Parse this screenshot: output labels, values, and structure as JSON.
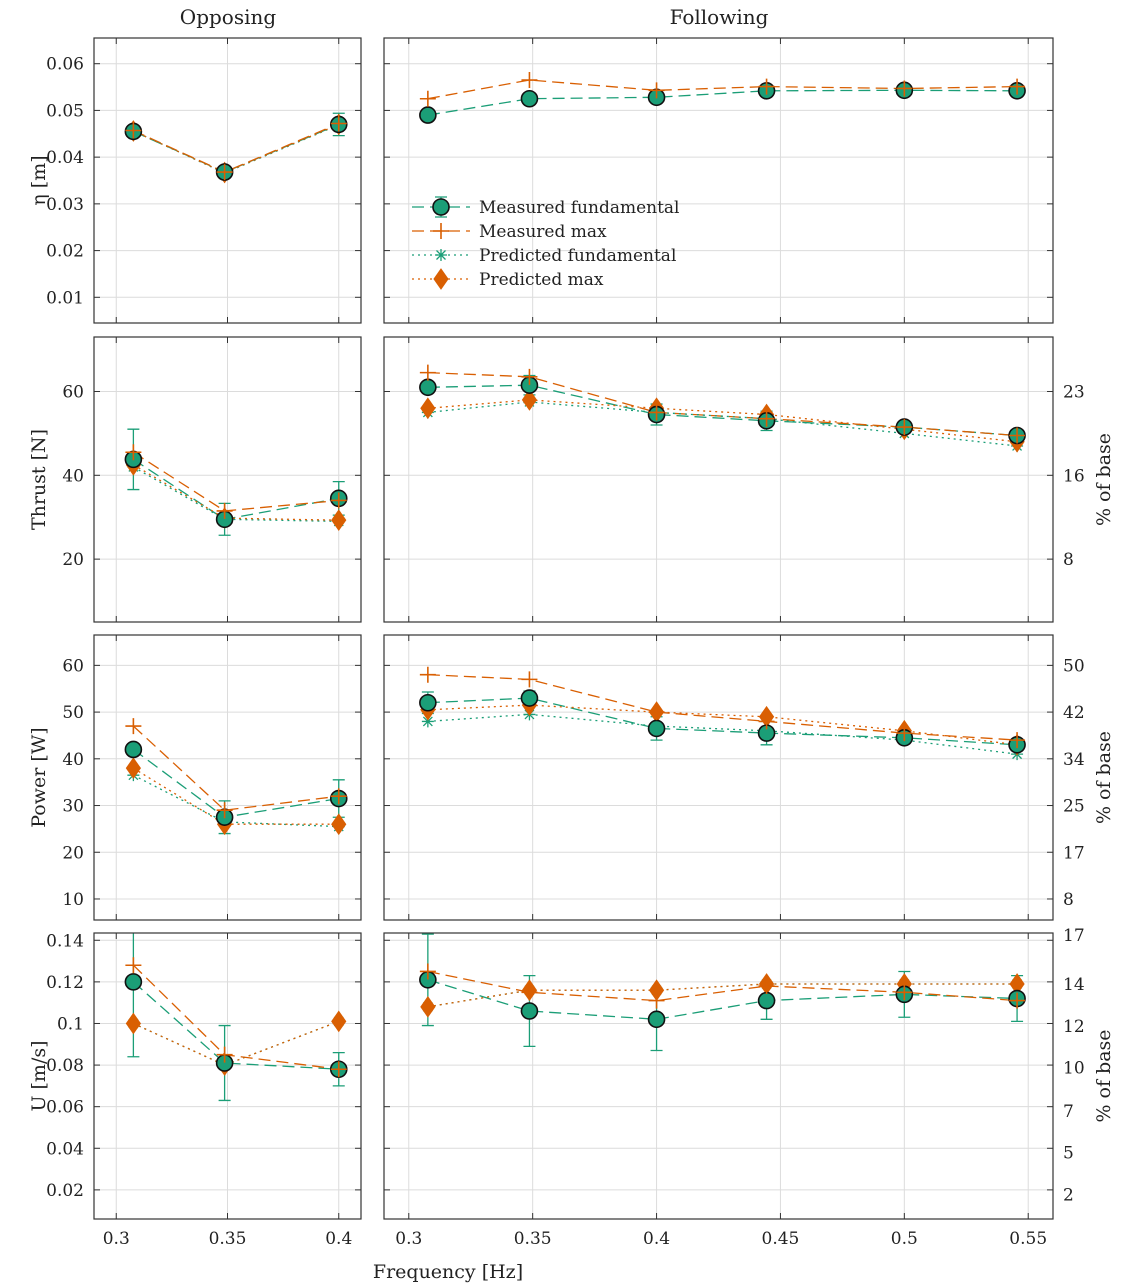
{
  "figure": {
    "column_titles": [
      "Opposing",
      "Following"
    ],
    "xlabel": "Frequency [Hz]"
  },
  "legend": {
    "placement": "inside first Following panel, middle-left",
    "entries": [
      {
        "series": "meas_fund",
        "label": "Measured fundamental"
      },
      {
        "series": "meas_max",
        "label": "Measured max"
      },
      {
        "series": "pred_fund",
        "label": "Predicted fundamental"
      },
      {
        "series": "pred_max",
        "label": "Predicted max"
      }
    ]
  },
  "series_styles": {
    "meas_fund": {
      "color": "#1b9e77",
      "line": "dashed",
      "marker": "circle"
    },
    "meas_max": {
      "color": "#d95f02",
      "line": "dashed",
      "marker": "plus"
    },
    "pred_fund": {
      "color": "#1b9e77",
      "line": "dotted",
      "marker": "asterisk"
    },
    "pred_max": {
      "color": "#d95f02",
      "line": "dotted",
      "marker": "diamond"
    }
  },
  "chart_data": [
    {
      "type": "line",
      "row": "eta",
      "column": "Opposing",
      "title": "Opposing",
      "ylabel": "η [m]",
      "xlabel": "",
      "xlim": [
        0.29,
        0.41
      ],
      "ylim": [
        0.0045,
        0.0655
      ],
      "xticks": [
        0.3,
        0.35,
        0.4
      ],
      "xticklabels": [
        "",
        "",
        ""
      ],
      "yticks": [
        0.01,
        0.02,
        0.03,
        0.04,
        0.05,
        0.06
      ],
      "yticklabels": [
        "0.01",
        "0.02",
        "0.03",
        "0.04",
        "0.05",
        "0.06"
      ],
      "grid": true,
      "x": [
        0.3077,
        0.3487,
        0.4
      ],
      "series": [
        {
          "key": "meas_fund",
          "values": [
            0.0455,
            0.0368,
            0.047
          ],
          "err": [
            0.0006,
            0.0006,
            0.0024
          ]
        },
        {
          "key": "meas_max",
          "values": [
            0.0457,
            0.0368,
            0.0472
          ]
        },
        {
          "key": "pred_fund",
          "values": [
            0.0456,
            0.0366,
            0.0469
          ]
        },
        {
          "key": "pred_max",
          "values": [
            0.0456,
            0.0367,
            0.047
          ]
        }
      ]
    },
    {
      "type": "line",
      "row": "eta",
      "column": "Following",
      "title": "Following",
      "ylabel": "",
      "xlabel": "",
      "xlim": [
        0.29,
        0.56
      ],
      "ylim": [
        0.0045,
        0.0655
      ],
      "xticks": [
        0.3,
        0.35,
        0.4,
        0.45,
        0.5,
        0.55
      ],
      "xticklabels": [
        "",
        "",
        "",
        "",
        "",
        ""
      ],
      "yticks": [
        0.01,
        0.02,
        0.03,
        0.04,
        0.05,
        0.06
      ],
      "yticklabels": [
        "",
        "",
        "",
        "",
        "",
        ""
      ],
      "grid": true,
      "x": [
        0.3077,
        0.3487,
        0.4,
        0.4444,
        0.5,
        0.5455
      ],
      "series": [
        {
          "key": "meas_fund",
          "values": [
            0.049,
            0.0525,
            0.0528,
            0.0542,
            0.0543,
            0.0542
          ],
          "err": [
            0.0005,
            0.0005,
            0.0005,
            0.0005,
            0.0005,
            0.0005
          ]
        },
        {
          "key": "meas_max",
          "values": [
            0.0525,
            0.0565,
            0.0543,
            0.0551,
            0.0547,
            0.0551
          ]
        }
      ]
    },
    {
      "type": "line",
      "row": "thrust",
      "column": "Opposing",
      "title": "",
      "ylabel": "Thrust [N]",
      "xlabel": "",
      "xlim": [
        0.29,
        0.41
      ],
      "ylim": [
        5,
        73
      ],
      "xticks": [
        0.3,
        0.35,
        0.4
      ],
      "xticklabels": [
        "",
        "",
        ""
      ],
      "yticks": [
        20,
        40,
        60
      ],
      "yticklabels": [
        "20",
        "40",
        "60"
      ],
      "grid": true,
      "x": [
        0.3077,
        0.3487,
        0.4
      ],
      "series": [
        {
          "key": "meas_fund",
          "values": [
            43.8,
            29.5,
            34.5
          ],
          "err": [
            7.2,
            3.8,
            4.0
          ]
        },
        {
          "key": "meas_max",
          "values": [
            45.5,
            31.5,
            34.0
          ]
        },
        {
          "key": "pred_fund",
          "values": [
            42.0,
            29.5,
            29.0
          ]
        },
        {
          "key": "pred_max",
          "values": [
            42.5,
            29.8,
            29.3
          ]
        }
      ]
    },
    {
      "type": "line",
      "row": "thrust",
      "column": "Following",
      "title": "",
      "ylabel": "% of base",
      "xlabel": "",
      "xlim": [
        0.29,
        0.56
      ],
      "ylim": [
        5,
        73
      ],
      "xticks": [
        0.3,
        0.35,
        0.4,
        0.45,
        0.5,
        0.55
      ],
      "xticklabels": [
        "",
        "",
        "",
        "",
        "",
        ""
      ],
      "yticks": [
        20,
        40,
        60
      ],
      "yticklabels": [
        "",
        "",
        ""
      ],
      "right_yticks": [
        20,
        40,
        60
      ],
      "right_yticklabels": [
        "8",
        "16",
        "23"
      ],
      "grid": true,
      "x": [
        0.3077,
        0.3487,
        0.4,
        0.4444,
        0.5,
        0.5455
      ],
      "series": [
        {
          "key": "meas_fund",
          "values": [
            61.0,
            61.5,
            54.5,
            53.0,
            51.5,
            49.5
          ],
          "err": [
            0.0,
            2.3,
            2.5,
            2.3,
            0.0,
            0.0
          ]
        },
        {
          "key": "meas_max",
          "values": [
            64.5,
            63.5,
            55.0,
            53.5,
            51.5,
            49.5
          ]
        },
        {
          "key": "pred_fund",
          "values": [
            55.0,
            57.5,
            55.0,
            53.5,
            50.0,
            47.0
          ]
        },
        {
          "key": "pred_max",
          "values": [
            56.0,
            58.0,
            56.0,
            54.5,
            51.0,
            48.0
          ]
        }
      ]
    },
    {
      "type": "line",
      "row": "power",
      "column": "Opposing",
      "title": "",
      "ylabel": "Power [W]",
      "xlabel": "",
      "xlim": [
        0.29,
        0.41
      ],
      "ylim": [
        5.5,
        66.5
      ],
      "xticks": [
        0.3,
        0.35,
        0.4
      ],
      "xticklabels": [
        "",
        "",
        ""
      ],
      "yticks": [
        10,
        20,
        30,
        40,
        50,
        60
      ],
      "yticklabels": [
        "10",
        "20",
        "30",
        "40",
        "50",
        "60"
      ],
      "grid": true,
      "x": [
        0.3077,
        0.3487,
        0.4
      ],
      "series": [
        {
          "key": "meas_fund",
          "values": [
            42.0,
            27.5,
            31.5
          ],
          "err": [
            0.0,
            3.5,
            4.0
          ]
        },
        {
          "key": "meas_max",
          "values": [
            47.0,
            29.0,
            32.0
          ]
        },
        {
          "key": "pred_fund",
          "values": [
            36.5,
            26.5,
            25.5
          ]
        },
        {
          "key": "pred_max",
          "values": [
            38.0,
            26.0,
            26.0
          ]
        }
      ]
    },
    {
      "type": "line",
      "row": "power",
      "column": "Following",
      "title": "",
      "ylabel": "% of base",
      "xlabel": "",
      "xlim": [
        0.29,
        0.56
      ],
      "ylim": [
        5.5,
        66.5
      ],
      "xticks": [
        0.3,
        0.35,
        0.4,
        0.45,
        0.5,
        0.55
      ],
      "xticklabels": [
        "",
        "",
        "",
        "",
        "",
        ""
      ],
      "yticks": [
        10,
        20,
        30,
        40,
        50,
        60
      ],
      "yticklabels": [
        "",
        "",
        "",
        "",
        "",
        ""
      ],
      "right_yticks": [
        10,
        20,
        30,
        40,
        50,
        60
      ],
      "right_yticklabels": [
        "8",
        "17",
        "25",
        "34",
        "42",
        "50"
      ],
      "grid": true,
      "x": [
        0.3077,
        0.3487,
        0.4,
        0.4444,
        0.5,
        0.5455
      ],
      "series": [
        {
          "key": "meas_fund",
          "values": [
            52.0,
            53.0,
            46.5,
            45.5,
            44.5,
            43.0
          ],
          "err": [
            2.3,
            1.5,
            2.5,
            2.5,
            0.0,
            0.0
          ]
        },
        {
          "key": "meas_max",
          "values": [
            58.0,
            57.0,
            50.0,
            48.0,
            45.5,
            44.0
          ]
        },
        {
          "key": "pred_fund",
          "values": [
            48.0,
            49.5,
            47.0,
            46.0,
            44.0,
            41.0
          ]
        },
        {
          "key": "pred_max",
          "values": [
            50.5,
            51.5,
            50.0,
            49.0,
            46.0,
            43.0
          ]
        }
      ]
    },
    {
      "type": "line",
      "row": "speed",
      "column": "Opposing",
      "title": "",
      "ylabel": "U [m/s]",
      "xlabel": "",
      "xlim": [
        0.29,
        0.41
      ],
      "ylim": [
        0.006,
        0.1435
      ],
      "xticks": [
        0.3,
        0.35,
        0.4
      ],
      "xticklabels": [
        "0.3",
        "0.35",
        "0.4"
      ],
      "yticks": [
        0.02,
        0.04,
        0.06,
        0.08,
        0.1,
        0.12,
        0.14
      ],
      "yticklabels": [
        "0.02",
        "0.04",
        "0.06",
        "0.08",
        "0.1",
        "0.12",
        "0.14"
      ],
      "grid": true,
      "x": [
        0.3077,
        0.3487,
        0.4
      ],
      "series": [
        {
          "key": "meas_fund",
          "values": [
            0.12,
            0.081,
            0.078
          ],
          "err": [
            0.036,
            0.018,
            0.008
          ]
        },
        {
          "key": "meas_max",
          "values": [
            0.128,
            0.085,
            0.078
          ]
        },
        {
          "key": "pred_fund",
          "values": [
            0.1,
            0.08,
            0.101
          ]
        },
        {
          "key": "pred_max",
          "values": [
            0.1,
            0.08,
            0.101
          ]
        }
      ]
    },
    {
      "type": "line",
      "row": "speed",
      "column": "Following",
      "title": "",
      "ylabel": "% of base",
      "xlabel": "",
      "xlim": [
        0.29,
        0.56
      ],
      "ylim": [
        0.006,
        0.1435
      ],
      "xticks": [
        0.3,
        0.35,
        0.4,
        0.45,
        0.5,
        0.55
      ],
      "xticklabels": [
        "0.3",
        "0.35",
        "0.4",
        "0.45",
        "0.5",
        "0.55"
      ],
      "yticks": [
        0.02,
        0.04,
        0.06,
        0.08,
        0.1,
        0.12,
        0.14
      ],
      "yticklabels": [
        "",
        "",
        "",
        "",
        "",
        "",
        ""
      ],
      "right_yticks": [
        0.0178,
        0.038,
        0.058,
        0.0788,
        0.0988,
        0.119,
        0.139,
        0.1425
      ],
      "right_yticklabels": [
        "2",
        "5",
        "7",
        "10",
        "12",
        "14",
        "",
        "17"
      ],
      "grid": true,
      "x": [
        0.3077,
        0.3487,
        0.4,
        0.4444,
        0.5,
        0.5455
      ],
      "series": [
        {
          "key": "meas_fund",
          "values": [
            0.121,
            0.106,
            0.102,
            0.111,
            0.114,
            0.112
          ],
          "err": [
            0.022,
            0.017,
            0.015,
            0.009,
            0.011,
            0.011
          ]
        },
        {
          "key": "meas_max",
          "values": [
            0.125,
            0.115,
            0.111,
            0.118,
            0.115,
            0.111
          ]
        },
        {
          "key": "pred_fund",
          "values": [
            0.108,
            0.116,
            0.116,
            0.119,
            0.119,
            0.119
          ]
        },
        {
          "key": "pred_max",
          "values": [
            0.108,
            0.116,
            0.116,
            0.119,
            0.119,
            0.119
          ]
        }
      ]
    }
  ]
}
